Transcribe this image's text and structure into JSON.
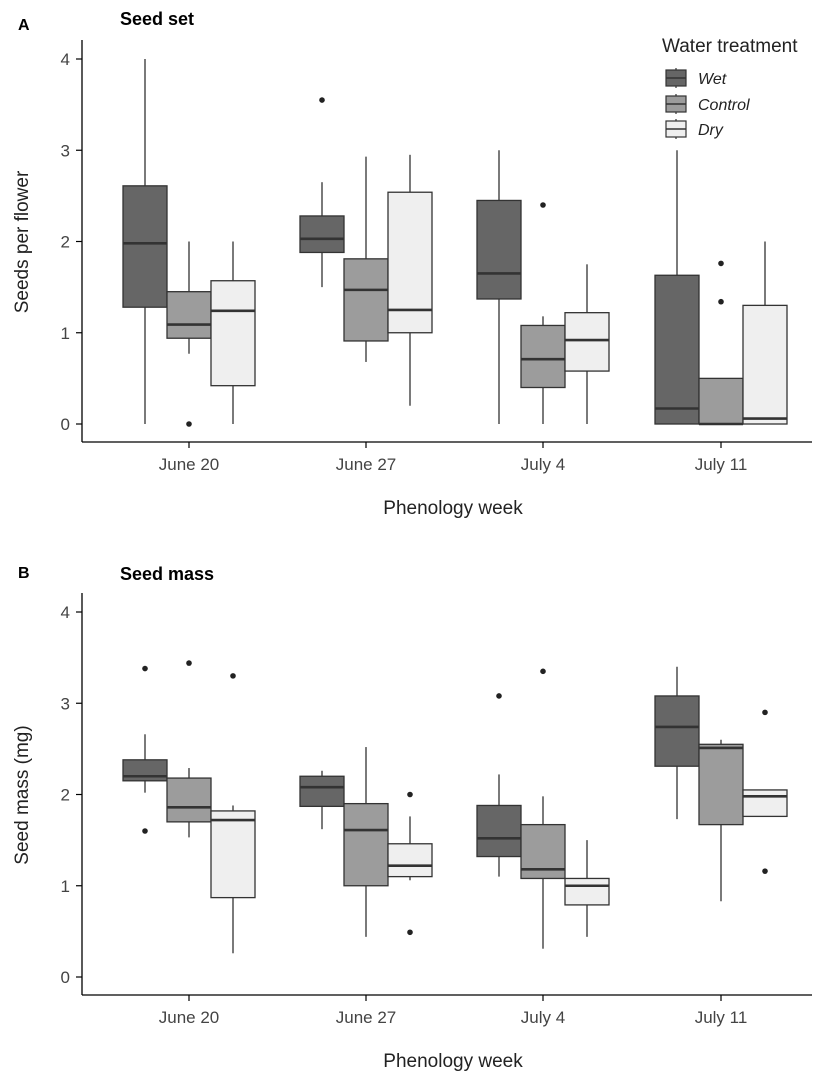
{
  "panels": [
    {
      "letter": "A",
      "title": "Seed set"
    },
    {
      "letter": "B",
      "title": "Seed mass"
    }
  ],
  "legend": {
    "title": "Water treatment",
    "items": [
      {
        "label": "Wet",
        "color": "#666666"
      },
      {
        "label": "Control",
        "color": "#9c9c9c"
      },
      {
        "label": "Dry",
        "color": "#efefef"
      }
    ]
  },
  "chart_data": [
    {
      "type": "boxplot",
      "title": "Seed set",
      "xlabel": "Phenology week",
      "ylabel": "Seeds per flower",
      "categories": [
        "June 20",
        "June 27",
        "July 4",
        "July 11"
      ],
      "ylim": [
        0,
        4
      ],
      "yticks": [
        0,
        1,
        2,
        3,
        4
      ],
      "grid": false,
      "legend_position": "top-right",
      "series": [
        {
          "name": "Wet",
          "color": "#666666",
          "boxes": [
            {
              "min": 0,
              "q1": 1.28,
              "median": 1.98,
              "q3": 2.61,
              "max": 4.0,
              "outliers": []
            },
            {
              "min": 1.5,
              "q1": 1.88,
              "median": 2.03,
              "q3": 2.28,
              "max": 2.65,
              "outliers": [
                3.55
              ]
            },
            {
              "min": 0,
              "q1": 1.37,
              "median": 1.65,
              "q3": 2.45,
              "max": 3.0,
              "outliers": []
            },
            {
              "min": 0,
              "q1": 0,
              "median": 0.17,
              "q3": 1.63,
              "max": 3.0,
              "outliers": []
            }
          ]
        },
        {
          "name": "Control",
          "color": "#9c9c9c",
          "boxes": [
            {
              "min": 0.77,
              "q1": 0.94,
              "median": 1.09,
              "q3": 1.45,
              "max": 2.0,
              "outliers": [
                0
              ]
            },
            {
              "min": 0.68,
              "q1": 0.91,
              "median": 1.47,
              "q3": 1.81,
              "max": 2.93,
              "outliers": []
            },
            {
              "min": 0,
              "q1": 0.4,
              "median": 0.71,
              "q3": 1.08,
              "max": 1.18,
              "outliers": [
                2.4
              ]
            },
            {
              "min": 0,
              "q1": 0,
              "median": 0,
              "q3": 0.5,
              "max": 0.5,
              "outliers": [
                1.34,
                1.76
              ]
            }
          ]
        },
        {
          "name": "Dry",
          "color": "#efefef",
          "boxes": [
            {
              "min": 0,
              "q1": 0.42,
              "median": 1.24,
              "q3": 1.57,
              "max": 2.0,
              "outliers": []
            },
            {
              "min": 0.2,
              "q1": 1.0,
              "median": 1.25,
              "q3": 2.54,
              "max": 2.95,
              "outliers": []
            },
            {
              "min": 0,
              "q1": 0.58,
              "median": 0.92,
              "q3": 1.22,
              "max": 1.75,
              "outliers": []
            },
            {
              "min": 0,
              "q1": 0,
              "median": 0.06,
              "q3": 1.3,
              "max": 2.0,
              "outliers": []
            }
          ]
        }
      ]
    },
    {
      "type": "boxplot",
      "title": "Seed mass",
      "xlabel": "Phenology week",
      "ylabel": "Seed mass (mg)",
      "categories": [
        "June 20",
        "June 27",
        "July 4",
        "July 11"
      ],
      "ylim": [
        0,
        4
      ],
      "yticks": [
        0,
        1,
        2,
        3,
        4
      ],
      "grid": false,
      "series": [
        {
          "name": "Wet",
          "color": "#666666",
          "boxes": [
            {
              "min": 2.02,
              "q1": 2.15,
              "median": 2.2,
              "q3": 2.38,
              "max": 2.66,
              "outliers": [
                3.38,
                1.6
              ]
            },
            {
              "min": 1.62,
              "q1": 1.87,
              "median": 2.08,
              "q3": 2.2,
              "max": 2.26,
              "outliers": []
            },
            {
              "min": 1.1,
              "q1": 1.32,
              "median": 1.52,
              "q3": 1.88,
              "max": 2.22,
              "outliers": [
                3.08
              ]
            },
            {
              "min": 1.73,
              "q1": 2.31,
              "median": 2.74,
              "q3": 3.08,
              "max": 3.4,
              "outliers": []
            }
          ]
        },
        {
          "name": "Control",
          "color": "#9c9c9c",
          "boxes": [
            {
              "min": 1.53,
              "q1": 1.7,
              "median": 1.86,
              "q3": 2.18,
              "max": 2.29,
              "outliers": [
                3.44
              ]
            },
            {
              "min": 0.44,
              "q1": 1.0,
              "median": 1.61,
              "q3": 1.9,
              "max": 2.52,
              "outliers": []
            },
            {
              "min": 0.31,
              "q1": 1.08,
              "median": 1.18,
              "q3": 1.67,
              "max": 1.98,
              "outliers": [
                3.35
              ]
            },
            {
              "min": 0.83,
              "q1": 1.67,
              "median": 2.51,
              "q3": 2.55,
              "max": 2.6,
              "outliers": []
            }
          ]
        },
        {
          "name": "Dry",
          "color": "#efefef",
          "boxes": [
            {
              "min": 0.26,
              "q1": 0.87,
              "median": 1.72,
              "q3": 1.82,
              "max": 1.88,
              "outliers": [
                3.3
              ]
            },
            {
              "min": 1.06,
              "q1": 1.1,
              "median": 1.22,
              "q3": 1.46,
              "max": 1.76,
              "outliers": [
                2.0,
                0.49
              ]
            },
            {
              "min": 0.44,
              "q1": 0.79,
              "median": 1.0,
              "q3": 1.08,
              "max": 1.5,
              "outliers": []
            },
            {
              "min": 1.76,
              "q1": 1.76,
              "median": 1.98,
              "q3": 2.05,
              "max": 2.05,
              "outliers": [
                2.9,
                1.16
              ]
            }
          ]
        }
      ]
    }
  ]
}
